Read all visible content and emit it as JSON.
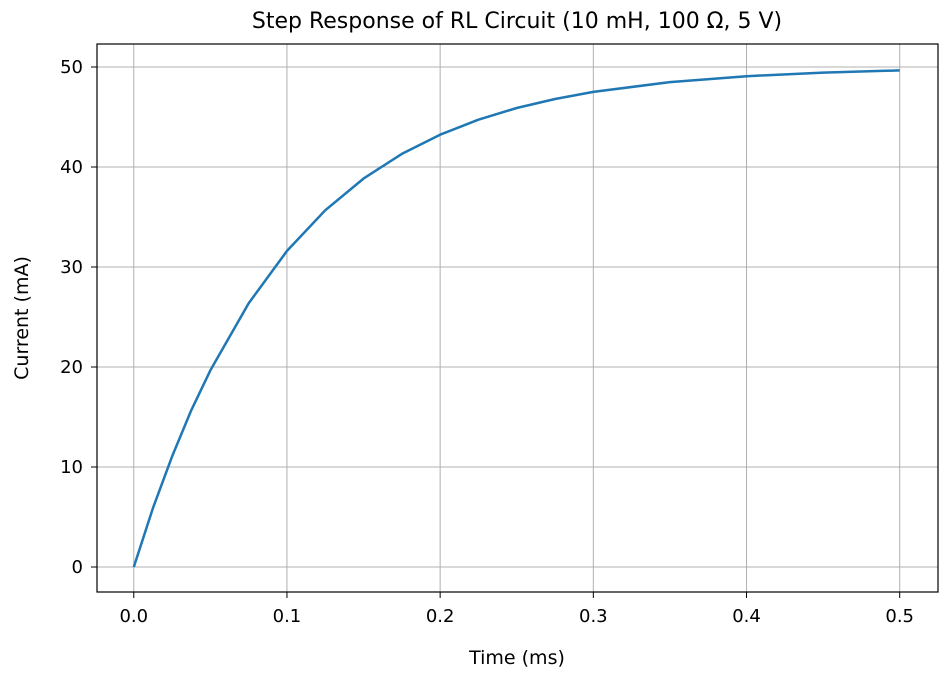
{
  "chart_data": {
    "type": "line",
    "title": "Step Response of RL Circuit (10 mH, 100 Ω, 5 V)",
    "xlabel": "Time (ms)",
    "ylabel": "Current (mA)",
    "xlim": [
      -0.024,
      0.525
    ],
    "ylim": [
      -2.5,
      52.3
    ],
    "grid": true,
    "xticks": [
      "0.0",
      "0.1",
      "0.2",
      "0.3",
      "0.4",
      "0.5"
    ],
    "xtick_values": [
      0,
      0.1,
      0.2,
      0.3,
      0.4,
      0.5
    ],
    "yticks": [
      "0",
      "10",
      "20",
      "30",
      "40",
      "50"
    ],
    "ytick_values": [
      0,
      10,
      20,
      30,
      40,
      50
    ],
    "color": "#1f77b4",
    "series": [
      {
        "x": [
          0,
          0.0125,
          0.025,
          0.0375,
          0.05,
          0.075,
          0.1,
          0.125,
          0.15,
          0.175,
          0.2,
          0.225,
          0.25,
          0.275,
          0.3,
          0.35,
          0.4,
          0.45,
          0.5
        ],
        "y": [
          0,
          5.88,
          11.06,
          15.66,
          19.67,
          26.38,
          31.61,
          35.67,
          38.84,
          41.31,
          43.23,
          44.73,
          45.9,
          46.8,
          47.51,
          48.49,
          49.08,
          49.44,
          49.66
        ]
      }
    ]
  }
}
